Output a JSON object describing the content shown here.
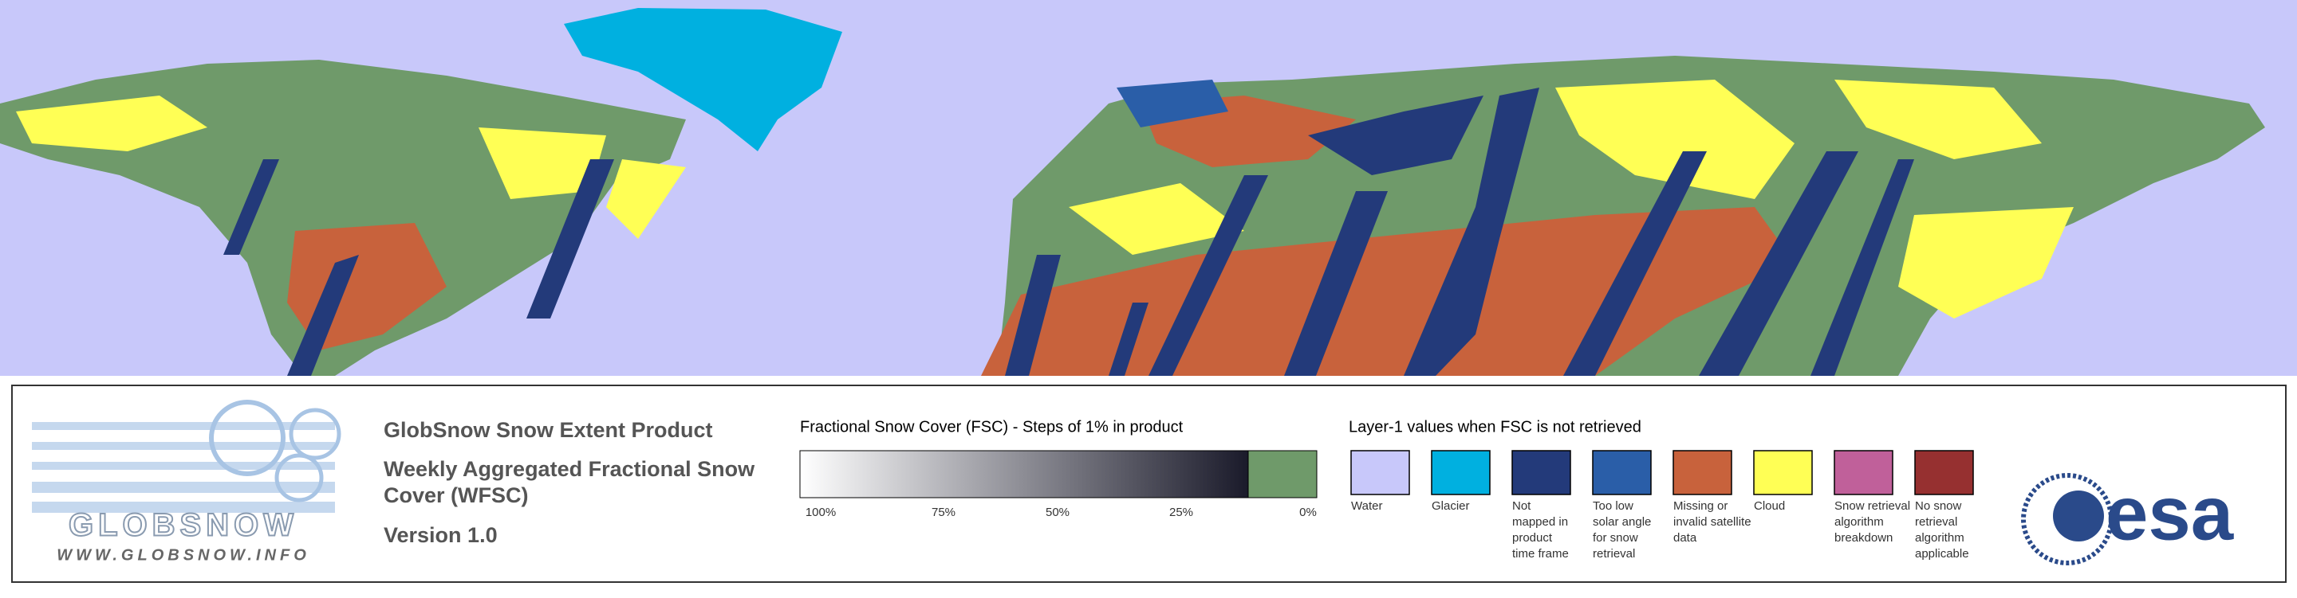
{
  "logo": {
    "name": "GLOBSNOW",
    "url": "WWW.GLOBSNOW.INFO"
  },
  "product": {
    "title": "GlobSnow Snow Extent Product",
    "subtitle_lines": [
      "Weekly Aggregated Fractional Snow",
      "Cover (WFSC)"
    ],
    "version": "Version 1.0"
  },
  "fsc_legend": {
    "title": "Fractional Snow Cover (FSC) - Steps of 1% in product",
    "ticks": [
      "100%",
      "75%",
      "50%",
      "25%",
      "0%"
    ],
    "gradient_from": "#ffffff",
    "gradient_to": "#1a1a2a",
    "zero_color": "#6f9a6a"
  },
  "layer_legend": {
    "title": "Layer-1 values when FSC is not retrieved",
    "items": [
      {
        "color": "#c8c8fa",
        "lines": [
          "Water"
        ]
      },
      {
        "color": "#00b0e0",
        "lines": [
          "Glacier"
        ]
      },
      {
        "color": "#233a7a",
        "lines": [
          "Not",
          "mapped in",
          "product",
          "time frame"
        ]
      },
      {
        "color": "#2a5ea8",
        "lines": [
          "Too low",
          "solar angle",
          "for snow",
          "retrieval"
        ]
      },
      {
        "color": "#c8623c",
        "lines": [
          "Missing or",
          "invalid satellite",
          "data"
        ]
      },
      {
        "color": "#ffff55",
        "lines": [
          "Cloud"
        ]
      },
      {
        "color": "#c0609a",
        "lines": [
          "Snow retrieval",
          "algorithm",
          "breakdown"
        ]
      },
      {
        "color": "#963030",
        "lines": [
          "No snow",
          "retrieval",
          "algorithm",
          "applicable"
        ]
      }
    ]
  },
  "agency": {
    "name": "esa"
  }
}
